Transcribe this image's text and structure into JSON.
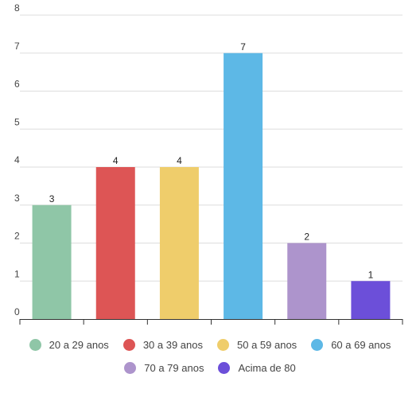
{
  "chart_data": {
    "type": "bar",
    "title": "",
    "xlabel": "",
    "ylabel": "",
    "ylim": [
      0,
      8
    ],
    "yticks": [
      0,
      1,
      2,
      3,
      4,
      5,
      6,
      7,
      8
    ],
    "grid": true,
    "legend_position": "bottom",
    "categories": [
      "20 a 29 anos",
      "30 a 39 anos",
      "50 a 59 anos",
      "60 a 69 anos",
      "70 a 79 anos",
      "Acima de 80"
    ],
    "values": [
      3,
      4,
      4,
      7,
      2,
      1
    ],
    "colors": [
      "#8fc6a7",
      "#dd5555",
      "#efcd6b",
      "#5db8e6",
      "#ad94cc",
      "#6c4fd9"
    ]
  }
}
